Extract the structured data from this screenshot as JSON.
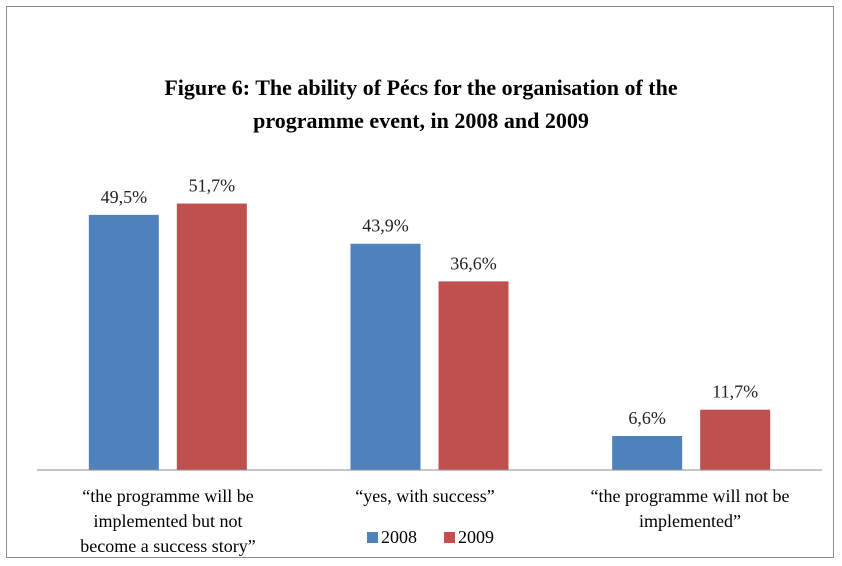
{
  "chart_data": {
    "type": "bar",
    "title_lines": [
      "Figure 6: The ability of Pécs for the organisation of the",
      "programme event, in 2008 and 2009"
    ],
    "categories": [
      [
        "“the programme will be",
        "implemented but not",
        "become a success story”"
      ],
      [
        "“yes, with success”"
      ],
      [
        "“the programme will not be",
        "implemented”"
      ]
    ],
    "series": [
      {
        "name": "2008",
        "values": [
          49.5,
          43.9,
          6.6
        ],
        "labels": [
          "49,5%",
          "43,9%",
          "6,6%"
        ],
        "color": "#4f81bd"
      },
      {
        "name": "2009",
        "values": [
          51.7,
          36.6,
          11.7
        ],
        "labels": [
          "51,7%",
          "36,6%",
          "11,7%"
        ],
        "color": "#c0504d"
      }
    ],
    "ylim": [
      0,
      52
    ],
    "grid": false,
    "legend_position": "bottom"
  }
}
